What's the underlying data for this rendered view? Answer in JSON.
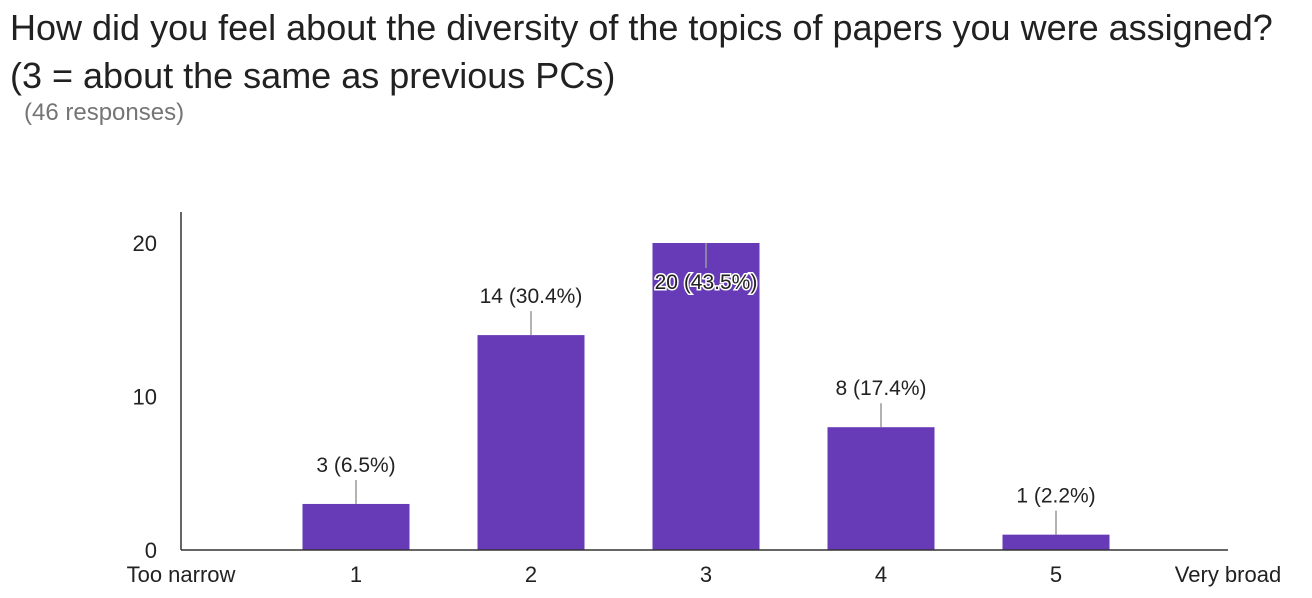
{
  "question": {
    "title": "How did you feel about the diversity of the topics of papers you were assigned? (3 = about the same as previous PCs)",
    "responses_label": "(46 responses)"
  },
  "colors": {
    "bar": "#673ab7",
    "axis": "#333333",
    "leader": "#999999",
    "text": "#222222"
  },
  "chart_data": {
    "type": "bar",
    "title": "How did you feel about the diversity of the topics of papers you were assigned? (3 = about the same as previous PCs)",
    "xlabel": "",
    "ylabel": "",
    "x_axis_end_labels": [
      "Too narrow",
      "Very broad"
    ],
    "categories": [
      "1",
      "2",
      "3",
      "4",
      "5"
    ],
    "values": [
      3,
      14,
      20,
      8,
      1
    ],
    "data_labels": [
      "3 (6.5%)",
      "14 (30.4%)",
      "20 (43.5%)",
      "8 (17.4%)",
      "1 (2.2%)"
    ],
    "y_ticks": [
      0,
      10,
      20
    ],
    "ylim": [
      0,
      22
    ],
    "grid": false,
    "legend": "none"
  }
}
